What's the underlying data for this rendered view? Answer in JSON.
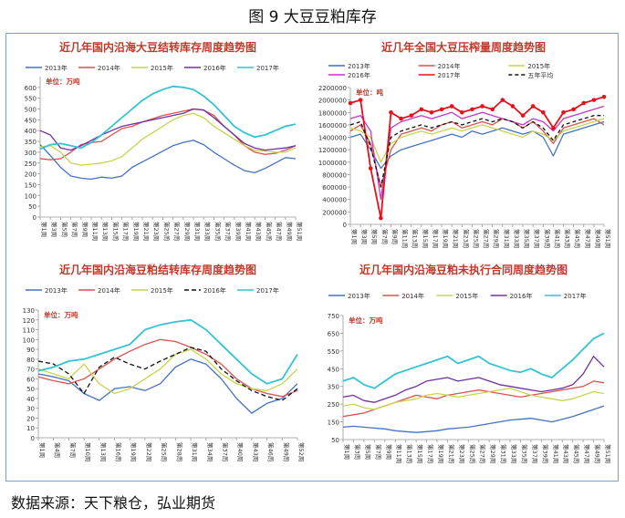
{
  "figure_title": "图 9  大豆豆粕库存",
  "source": "数据来源：天下粮仓，弘业期货",
  "chart_data": [
    {
      "type": "line",
      "title": "近几年国内沿海大豆结转库存周度趋势图",
      "unit": "单位：万吨",
      "ylim": [
        0,
        650
      ],
      "yticks": [
        0,
        50,
        100,
        150,
        200,
        250,
        300,
        350,
        400,
        450,
        500,
        550,
        600
      ],
      "categories": [
        "第1周",
        "第3周",
        "第5周",
        "第7周",
        "第9周",
        "第11周",
        "第13周",
        "第15周",
        "第17周",
        "第19周",
        "第21周",
        "第23周",
        "第25周",
        "第27周",
        "第29周",
        "第31周",
        "第33周",
        "第35周",
        "第37周",
        "第39周",
        "第41周",
        "第43周",
        "第45周",
        "第47周",
        "第49周",
        "第51周"
      ],
      "series": [
        {
          "name": "2013年",
          "color": "#4472c4",
          "values": [
            335,
            285,
            230,
            190,
            180,
            175,
            185,
            180,
            190,
            230,
            255,
            280,
            305,
            330,
            345,
            355,
            335,
            300,
            270,
            240,
            215,
            205,
            225,
            250,
            275,
            270
          ]
        },
        {
          "name": "2014年",
          "color": "#d9534f",
          "values": [
            270,
            265,
            270,
            300,
            335,
            345,
            350,
            380,
            410,
            420,
            440,
            455,
            470,
            480,
            490,
            500,
            495,
            470,
            420,
            380,
            330,
            300,
            290,
            295,
            310,
            330
          ]
        },
        {
          "name": "2015年",
          "color": "#c8d44e",
          "values": [
            325,
            330,
            300,
            250,
            240,
            245,
            250,
            260,
            280,
            320,
            360,
            390,
            420,
            450,
            470,
            480,
            460,
            420,
            390,
            360,
            330,
            310,
            305,
            300,
            300,
            320
          ]
        },
        {
          "name": "2016年",
          "color": "#7030a0",
          "values": [
            400,
            380,
            320,
            310,
            330,
            355,
            380,
            400,
            420,
            430,
            440,
            450,
            460,
            470,
            480,
            500,
            495,
            460,
            420,
            380,
            340,
            320,
            310,
            315,
            320,
            330
          ]
        },
        {
          "name": "2017年",
          "color": "#33c3d4",
          "values": [
            315,
            335,
            340,
            330,
            320,
            345,
            380,
            420,
            460,
            500,
            540,
            570,
            590,
            605,
            600,
            590,
            560,
            520,
            470,
            420,
            390,
            370,
            380,
            400,
            420,
            430
          ]
        }
      ],
      "legend": "top"
    },
    {
      "type": "line",
      "title": "近几年全国大豆压榨量周度趋势图",
      "unit": "单位：吨",
      "ylim": [
        0,
        2200000
      ],
      "yticks": [
        0,
        200000,
        400000,
        600000,
        800000,
        1000000,
        1200000,
        1400000,
        1600000,
        1800000,
        2000000,
        2200000
      ],
      "categories": [
        "第1周",
        "第3周",
        "第5周",
        "第7周",
        "第9周",
        "第11周",
        "第13周",
        "第15周",
        "第17周",
        "第19周",
        "第21周",
        "第23周",
        "第25周",
        "第27周",
        "第29周",
        "第31周",
        "第33周",
        "第35周",
        "第37周",
        "第39周",
        "第41周",
        "第43周",
        "第45周",
        "第47周",
        "第49周",
        "第51周"
      ],
      "series": [
        {
          "name": "2013年",
          "color": "#4472c4",
          "values": [
            1400000,
            1450000,
            1200000,
            900000,
            1100000,
            1200000,
            1250000,
            1300000,
            1350000,
            1400000,
            1450000,
            1400000,
            1500000,
            1450000,
            1500000,
            1550000,
            1500000,
            1450000,
            1500000,
            1400000,
            1100000,
            1450000,
            1500000,
            1550000,
            1600000,
            1650000
          ]
        },
        {
          "name": "2014年",
          "color": "#d9534f",
          "values": [
            1500000,
            1600000,
            1300000,
            600000,
            1200000,
            1450000,
            1500000,
            1550000,
            1500000,
            1600000,
            1650000,
            1550000,
            1600000,
            1650000,
            1600000,
            1700000,
            1650000,
            1550000,
            1650000,
            1500000,
            1300000,
            1550000,
            1600000,
            1650000,
            1700000,
            1600000
          ]
        },
        {
          "name": "2015年",
          "color": "#c8d44e",
          "values": [
            1550000,
            1500000,
            1400000,
            1000000,
            1300000,
            1400000,
            1450000,
            1500000,
            1450000,
            1500000,
            1550000,
            1500000,
            1550000,
            1600000,
            1550000,
            1500000,
            1450000,
            1400000,
            1500000,
            1450000,
            1350000,
            1500000,
            1550000,
            1600000,
            1650000,
            1700000
          ]
        },
        {
          "name": "2016年",
          "color": "#c438c4",
          "values": [
            1700000,
            1750000,
            1500000,
            400000,
            1550000,
            1650000,
            1700000,
            1750000,
            1700000,
            1750000,
            1800000,
            1700000,
            1750000,
            1800000,
            1750000,
            1700000,
            1650000,
            1600000,
            1700000,
            1650000,
            1500000,
            1700000,
            1750000,
            1800000,
            1850000,
            1900000
          ]
        },
        {
          "name": "2017年",
          "color": "#e8101a",
          "values": [
            1950000,
            2000000,
            900000,
            100000,
            1800000,
            1700000,
            1750000,
            1850000,
            1800000,
            1850000,
            1900000,
            1800000,
            1850000,
            1900000,
            1850000,
            2000000,
            1900000,
            1750000,
            1900000,
            1800000,
            1550000,
            1800000,
            1850000,
            1950000,
            2000000,
            2050000
          ]
        },
        {
          "name": "五年平均",
          "color": "#111111",
          "dash": "4 3",
          "values": [
            1600000,
            1650000,
            1250000,
            600000,
            1400000,
            1500000,
            1550000,
            1600000,
            1550000,
            1600000,
            1650000,
            1600000,
            1650000,
            1700000,
            1650000,
            1700000,
            1650000,
            1550000,
            1650000,
            1550000,
            1350000,
            1600000,
            1650000,
            1700000,
            1750000,
            1750000
          ]
        }
      ],
      "legend": "top"
    },
    {
      "type": "line",
      "title": "近几年国内沿海豆粕结转库存周度趋势图",
      "unit": "单位：万吨",
      "ylim": [
        0,
        130
      ],
      "yticks": [
        0,
        10,
        20,
        30,
        40,
        50,
        60,
        70,
        80,
        90,
        100,
        110,
        120,
        130
      ],
      "categories": [
        "第1周",
        "第4周",
        "第7周",
        "第10周",
        "第13周",
        "第16周",
        "第19周",
        "第22周",
        "第25周",
        "第28周",
        "第31周",
        "第34周",
        "第37周",
        "第40周",
        "第43周",
        "第46周",
        "第49周",
        "第52周"
      ],
      "series": [
        {
          "name": "2013年",
          "color": "#4472c4",
          "values": [
            65,
            62,
            58,
            45,
            38,
            50,
            52,
            48,
            55,
            72,
            80,
            75,
            60,
            40,
            25,
            35,
            40,
            55
          ]
        },
        {
          "name": "2014年",
          "color": "#d9534f",
          "values": [
            62,
            58,
            55,
            60,
            70,
            80,
            88,
            95,
            100,
            98,
            92,
            85,
            75,
            60,
            50,
            45,
            42,
            48
          ]
        },
        {
          "name": "2015年",
          "color": "#c8d44e",
          "values": [
            70,
            65,
            60,
            75,
            55,
            45,
            50,
            60,
            70,
            85,
            90,
            80,
            65,
            55,
            50,
            48,
            55,
            70
          ]
        },
        {
          "name": "2016年",
          "color": "#111111",
          "dash": "5 3",
          "values": [
            78,
            75,
            65,
            45,
            72,
            82,
            75,
            70,
            78,
            85,
            92,
            88,
            70,
            58,
            48,
            42,
            38,
            50
          ]
        },
        {
          "name": "2017年",
          "color": "#33c3d4",
          "values": [
            68,
            72,
            78,
            80,
            85,
            90,
            95,
            110,
            115,
            118,
            120,
            110,
            95,
            80,
            65,
            55,
            60,
            85
          ]
        }
      ],
      "legend": "top"
    },
    {
      "type": "line",
      "title": "近几年国内沿海豆粕未执行合同周度趋势图",
      "unit": "单位：万吨",
      "ylim": [
        50,
        750
      ],
      "yticks": [
        50,
        150,
        250,
        350,
        450,
        550,
        650,
        750
      ],
      "categories": [
        "第1周",
        "第3周",
        "第5周",
        "第7周",
        "第9周",
        "第11周",
        "第13周",
        "第15周",
        "第17周",
        "第19周",
        "第21周",
        "第23周",
        "第25周",
        "第27周",
        "第29周",
        "第31周",
        "第33周",
        "第35周",
        "第37周",
        "第39周",
        "第41周",
        "第43周",
        "第45周",
        "第47周",
        "第49周",
        "第51周"
      ],
      "series": [
        {
          "name": "2013年",
          "color": "#4472c4",
          "values": [
            120,
            125,
            120,
            115,
            110,
            100,
            95,
            90,
            95,
            100,
            110,
            115,
            120,
            130,
            140,
            150,
            160,
            165,
            170,
            160,
            150,
            165,
            180,
            200,
            220,
            240
          ]
        },
        {
          "name": "2014年",
          "color": "#d9534f",
          "values": [
            180,
            190,
            200,
            220,
            240,
            260,
            280,
            300,
            290,
            280,
            300,
            310,
            320,
            330,
            320,
            310,
            300,
            290,
            300,
            310,
            320,
            330,
            340,
            350,
            380,
            370
          ]
        },
        {
          "name": "2015年",
          "color": "#c8d44e",
          "values": [
            240,
            250,
            230,
            220,
            240,
            260,
            270,
            280,
            300,
            310,
            300,
            290,
            300,
            310,
            320,
            330,
            340,
            320,
            300,
            290,
            280,
            270,
            280,
            300,
            320,
            310
          ]
        },
        {
          "name": "2016年",
          "color": "#7030a0",
          "values": [
            290,
            300,
            270,
            260,
            280,
            300,
            330,
            350,
            380,
            390,
            400,
            380,
            390,
            400,
            380,
            360,
            350,
            340,
            330,
            320,
            330,
            340,
            360,
            420,
            520,
            460
          ]
        },
        {
          "name": "2017年",
          "color": "#33c3d4",
          "values": [
            380,
            400,
            360,
            340,
            380,
            420,
            440,
            460,
            480,
            500,
            520,
            480,
            500,
            520,
            480,
            460,
            440,
            430,
            450,
            420,
            400,
            450,
            500,
            560,
            620,
            650
          ]
        }
      ],
      "legend": "top"
    }
  ]
}
